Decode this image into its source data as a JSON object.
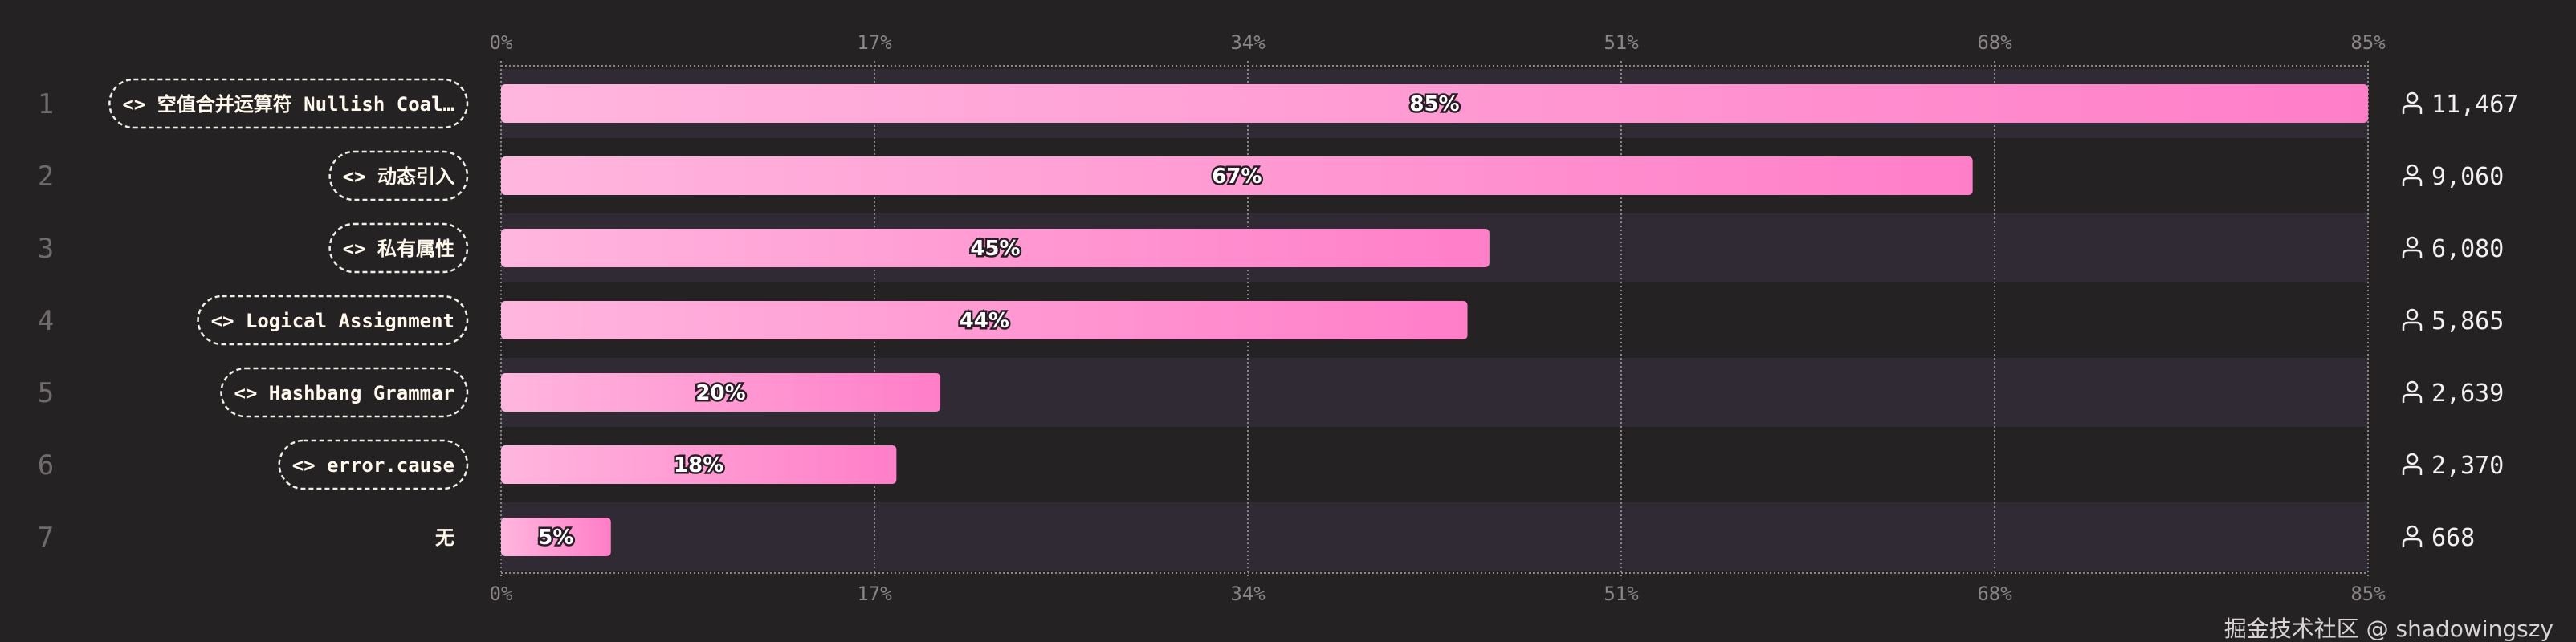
{
  "chart_data": {
    "type": "bar",
    "orientation": "horizontal",
    "categories": [
      "空值合并运算符 Nullish Coal…",
      "动态引入",
      "私有属性",
      "Logical Assignment",
      "Hashbang Grammar",
      "error.cause",
      "无"
    ],
    "category_code_marker": [
      true,
      true,
      true,
      true,
      true,
      true,
      false
    ],
    "ranks": [
      "1",
      "2",
      "3",
      "4",
      "5",
      "6",
      "7"
    ],
    "values": [
      85,
      67,
      45,
      44,
      20,
      18,
      5
    ],
    "value_labels": [
      "85%",
      "67%",
      "45%",
      "44%",
      "20%",
      "18%",
      "5%"
    ],
    "counts": [
      "11,467",
      "9,060",
      "6,080",
      "5,865",
      "2,639",
      "2,370",
      "668"
    ],
    "count_icon": "user-icon",
    "xlim": [
      0,
      85
    ],
    "x_ticks": [
      "0%",
      "17%",
      "34%",
      "51%",
      "68%",
      "85%"
    ],
    "x_tick_values": [
      0,
      17,
      34,
      51,
      68,
      85
    ],
    "grid": true,
    "colors": {
      "bar_start": "#ffb6de",
      "bar_end": "#ff7ec8",
      "background": "#252224",
      "band": "#2f2a33"
    }
  },
  "code_icon": "<>",
  "watermark": "掘金技术社区 @ shadowingszy"
}
